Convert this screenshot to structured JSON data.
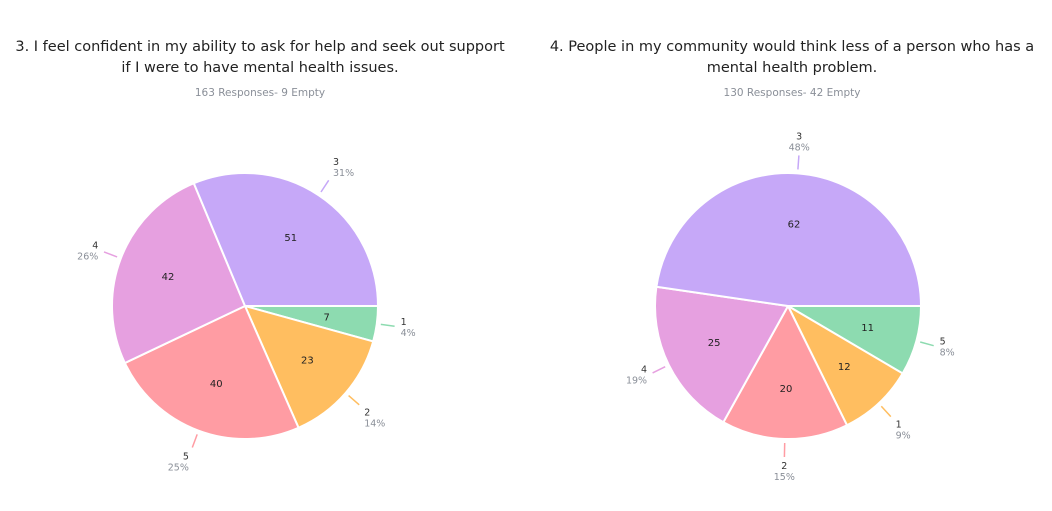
{
  "chart_data": [
    {
      "type": "pie",
      "title": "3. I feel confident in my ability to ask for help and seek out support if I were to have mental health issues.",
      "subtitle": "163 Responses- 9 Empty",
      "slices": [
        {
          "category": "1",
          "value": 7,
          "percent": "4%",
          "color": "#8ddbb0"
        },
        {
          "category": "2",
          "value": 23,
          "percent": "14%",
          "color": "#ffbe60"
        },
        {
          "category": "5",
          "value": 40,
          "percent": "25%",
          "color": "#ff9ca3"
        },
        {
          "category": "4",
          "value": 42,
          "percent": "26%",
          "color": "#e6a0e0"
        },
        {
          "category": "3",
          "value": 51,
          "percent": "31%",
          "color": "#c6a8f8"
        }
      ]
    },
    {
      "type": "pie",
      "title": "4. People in my community would think less of a person who has a mental health problem.",
      "subtitle": "130 Responses- 42 Empty",
      "slices": [
        {
          "category": "5",
          "value": 11,
          "percent": "8%",
          "color": "#8ddbb0"
        },
        {
          "category": "1",
          "value": 12,
          "percent": "9%",
          "color": "#ffbe60"
        },
        {
          "category": "2",
          "value": 20,
          "percent": "15%",
          "color": "#ff9ca3"
        },
        {
          "category": "4",
          "value": 25,
          "percent": "19%",
          "color": "#e6a0e0"
        },
        {
          "category": "3",
          "value": 62,
          "percent": "48%",
          "color": "#c6a8f8"
        }
      ]
    }
  ]
}
